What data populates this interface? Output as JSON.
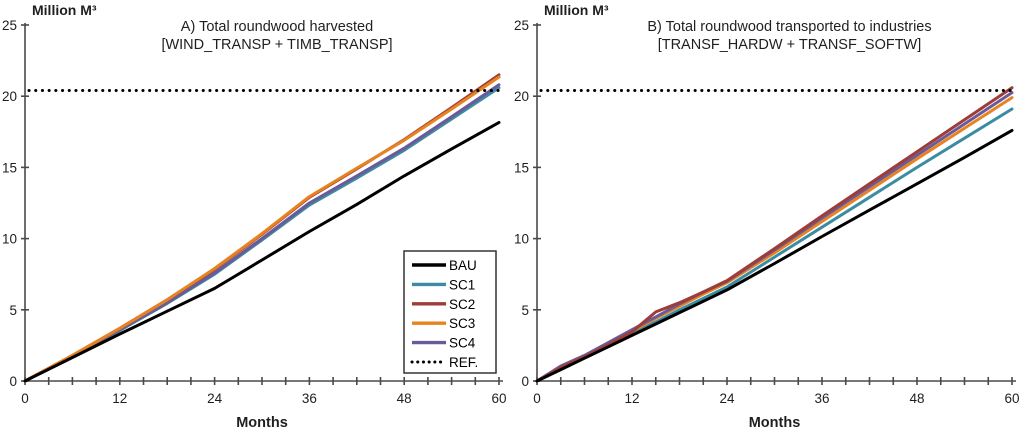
{
  "figure": {
    "background": "#ffffff",
    "axis_color": "#4a4a4a",
    "text_color": "#1f1f1f"
  },
  "legend": {
    "entries": [
      {
        "label": "BAU",
        "color": "#000000",
        "style": "solid"
      },
      {
        "label": "SC1",
        "color": "#3b8ca3",
        "style": "solid"
      },
      {
        "label": "SC2",
        "color": "#9e3c38",
        "style": "solid"
      },
      {
        "label": "SC3",
        "color": "#e8821f",
        "style": "solid"
      },
      {
        "label": "SC4",
        "color": "#6a5a99",
        "style": "solid"
      },
      {
        "label": "REF.",
        "color": "#000000",
        "style": "dotted"
      }
    ]
  },
  "chart_data": [
    {
      "id": "A",
      "type": "line",
      "title_lines": [
        "A) Total  roundwood harvested",
        "[WIND_TRANSP + TIMB_TRANSP]"
      ],
      "ylabel": "Million M³",
      "xlabel": "Months",
      "xlim": [
        0,
        60
      ],
      "ylim": [
        0,
        25
      ],
      "yticks": [
        0,
        5,
        10,
        15,
        20,
        25
      ],
      "xticks_labeled": [
        0,
        12,
        24,
        36,
        48,
        60
      ],
      "xtick_minor_step": 3,
      "grid": false,
      "show_legend": true,
      "legend_position": "inside-right",
      "ref_line": {
        "label": "REF.",
        "value": 20.4,
        "style": "dotted",
        "color": "#000000"
      },
      "x": [
        0,
        6,
        12,
        18,
        24,
        30,
        36,
        42,
        48,
        54,
        60
      ],
      "series": [
        {
          "name": "SC1",
          "color": "#3b8ca3",
          "values": [
            0,
            1.73,
            3.55,
            5.45,
            7.5,
            9.9,
            12.35,
            14.25,
            16.2,
            18.4,
            20.6
          ]
        },
        {
          "name": "SC4",
          "color": "#6a5a99",
          "values": [
            0,
            1.75,
            3.6,
            5.5,
            7.6,
            10.0,
            12.5,
            14.4,
            16.35,
            18.55,
            20.8
          ]
        },
        {
          "name": "SC2",
          "color": "#9e3c38",
          "values": [
            0,
            1.8,
            3.7,
            5.7,
            7.85,
            10.3,
            12.9,
            14.9,
            16.95,
            19.2,
            21.5
          ]
        },
        {
          "name": "SC3",
          "color": "#e8821f",
          "values": [
            0,
            1.8,
            3.7,
            5.7,
            7.9,
            10.35,
            12.95,
            14.95,
            16.9,
            19.1,
            21.35
          ]
        },
        {
          "name": "BAU",
          "color": "#000000",
          "values": [
            0,
            1.65,
            3.3,
            4.9,
            6.5,
            8.5,
            10.5,
            12.4,
            14.4,
            16.3,
            18.15
          ]
        }
      ]
    },
    {
      "id": "B",
      "type": "line",
      "title_lines": [
        "B) Total  roundwood transported to industries",
        "[TRANSF_HARDW + TRANSF_SOFTW]"
      ],
      "ylabel": "Million M³",
      "xlabel": "Months",
      "xlim": [
        0,
        60
      ],
      "ylim": [
        0,
        25
      ],
      "yticks": [
        0,
        5,
        10,
        15,
        20,
        25
      ],
      "xticks_labeled": [
        0,
        12,
        24,
        36,
        48,
        60
      ],
      "xtick_minor_step": 3,
      "grid": false,
      "show_legend": false,
      "ref_line": {
        "label": "REF.",
        "value": 20.4,
        "style": "dotted",
        "color": "#000000"
      },
      "x": [
        0,
        3,
        6,
        9,
        12,
        15,
        18,
        21,
        24,
        30,
        36,
        42,
        48,
        54,
        60
      ],
      "series": [
        {
          "name": "SC1",
          "color": "#3b8ca3",
          "values": [
            0,
            0.85,
            1.65,
            2.5,
            3.35,
            4.15,
            5.0,
            5.8,
            6.6,
            8.7,
            10.8,
            12.9,
            15.0,
            17.05,
            19.1
          ]
        },
        {
          "name": "SC3",
          "color": "#e8821f",
          "values": [
            0,
            1.0,
            1.75,
            2.6,
            3.5,
            4.4,
            5.25,
            6.1,
            6.9,
            9.0,
            11.2,
            13.4,
            15.6,
            17.75,
            19.9
          ]
        },
        {
          "name": "SC4",
          "color": "#6a5a99",
          "values": [
            0,
            1.05,
            1.8,
            2.7,
            3.6,
            4.5,
            5.4,
            6.25,
            7.0,
            9.2,
            11.45,
            13.65,
            15.85,
            18.05,
            20.25
          ]
        },
        {
          "name": "SC2",
          "color": "#9e3c38",
          "values": [
            0,
            0.95,
            1.7,
            2.55,
            3.45,
            4.85,
            5.5,
            6.25,
            7.05,
            9.3,
            11.6,
            13.85,
            16.1,
            18.35,
            20.6
          ]
        },
        {
          "name": "BAU",
          "color": "#000000",
          "values": [
            0,
            0.8,
            1.6,
            2.4,
            3.2,
            4.0,
            4.8,
            5.6,
            6.4,
            8.25,
            10.15,
            12.0,
            13.85,
            15.7,
            17.6
          ]
        }
      ]
    }
  ]
}
